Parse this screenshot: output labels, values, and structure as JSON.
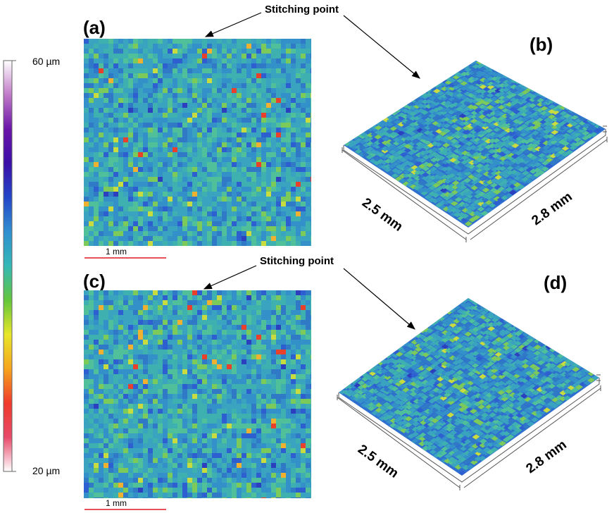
{
  "panels": {
    "a": "(a)",
    "b": "(b)",
    "c": "(c)",
    "d": "(d)"
  },
  "annotations": {
    "top": "Stitching point",
    "bottom": "Stitching point"
  },
  "colorbar": {
    "max_label": "60 µm",
    "min_label": "20 µm",
    "colors": [
      "#ffffff",
      "#e84a6a",
      "#f03a2a",
      "#f6a51e",
      "#e8e62a",
      "#63c63a",
      "#35b8b6",
      "#2f8fd0",
      "#2346c8",
      "#3a0fa8",
      "#6a14a8",
      "#c07ac8",
      "#ffffff"
    ]
  },
  "scale_bars": {
    "top": "1 mm",
    "bottom": "1 mm",
    "color": "#e8505a"
  },
  "dimensions_3d": {
    "b_left": "2.5 mm",
    "b_right": "2.8 mm",
    "d_left": "2.5 mm",
    "d_right": "2.8 mm"
  },
  "palette": {
    "map_colors": [
      "#2b3fbf",
      "#2e5fd0",
      "#2f79c6",
      "#3490c8",
      "#3aa3c0",
      "#3fb0b0",
      "#4fc09a",
      "#7ccb5a",
      "#c8dc40",
      "#f0b030",
      "#e8402a"
    ]
  }
}
